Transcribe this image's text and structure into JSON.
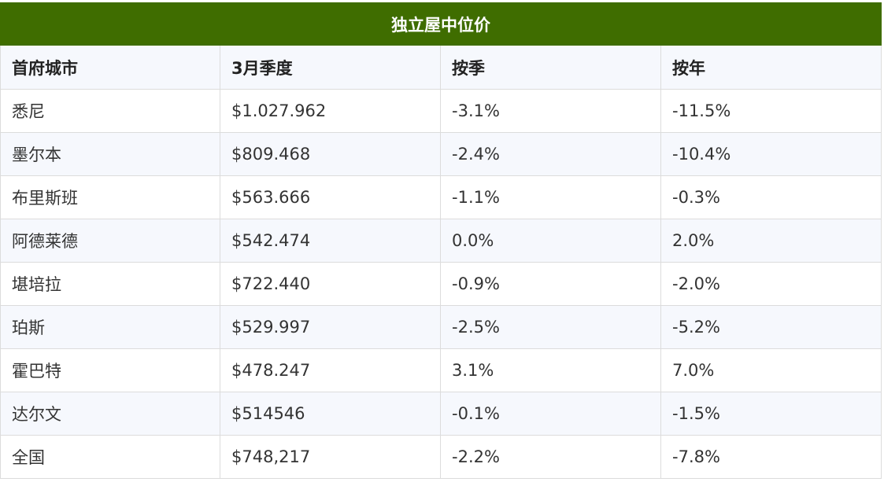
{
  "table": {
    "title": "独立屋中位价",
    "headers": [
      "首府城市",
      "3月季度",
      "按季",
      "按年"
    ],
    "rows": [
      [
        "悉尼",
        "$1.027.962",
        "-3.1%",
        "-11.5%"
      ],
      [
        "墨尔本",
        "$809.468",
        "-2.4%",
        "-10.4%"
      ],
      [
        "布里斯班",
        "$563.666",
        "-1.1%",
        "-0.3%"
      ],
      [
        "阿德莱德",
        "$542.474",
        "0.0%",
        "2.0%"
      ],
      [
        "堪培拉",
        "$722.440",
        "-0.9%",
        "-2.0%"
      ],
      [
        "珀斯",
        "$529.997",
        "-2.5%",
        "-5.2%"
      ],
      [
        "霍巴特",
        "$478.247",
        "3.1%",
        "7.0%"
      ],
      [
        "达尔文",
        "$514546",
        "-0.1%",
        "-1.5%"
      ],
      [
        "全国",
        "$748,217",
        "-2.2%",
        "-7.8%"
      ]
    ]
  },
  "colors": {
    "header_bg": "#3f6d00",
    "header_text": "#ffffff",
    "stripe": "#f6f8fd",
    "border": "#dcdcdc"
  }
}
